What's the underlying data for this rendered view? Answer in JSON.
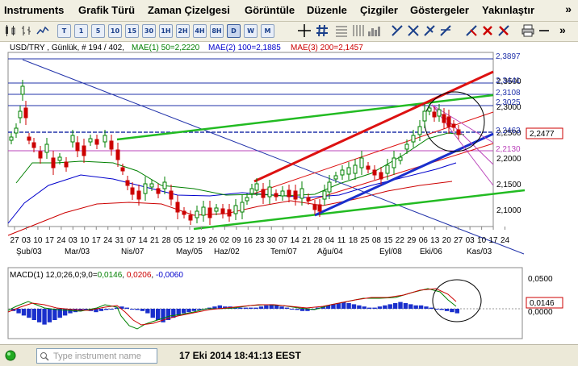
{
  "menu": [
    "Instruments",
    "Grafik Türü",
    "Zaman Çizelgesi",
    "Görüntüle",
    "Düzenle",
    "Çizgiler",
    "Göstergeler",
    "Yakınlaştır"
  ],
  "menu_more": "»",
  "toolbar": {
    "periods": [
      "T",
      "1",
      "5",
      "10",
      "15",
      "30",
      "1H",
      "2H",
      "4H",
      "8H",
      "D",
      "W",
      "M"
    ],
    "active_period": "D",
    "more": "»"
  },
  "chart": {
    "header": {
      "instrument": "USD/TRY , Günlük, # 194 / 402,",
      "ma1": "MAE(1) 50=2,2220",
      "ma2": "MAE(2) 100=2,1885",
      "ma3": "MAE(3) 200=2,1457",
      "ma1_color": "#008000",
      "ma2_color": "#0000cc",
      "ma3_color": "#cc0000"
    },
    "price_labels": [
      "2,3897",
      "2,3441",
      "2,3108",
      "2,3025",
      "2,2463",
      "2,2130"
    ],
    "axis_labels": [
      "2,3500",
      "2,3000",
      "2,2500",
      "2,2000",
      "2,1500",
      "2,1000"
    ],
    "current_price": "2,2477",
    "date_ticks": [
      "27",
      "03",
      "10",
      "17",
      "24",
      "03",
      "10",
      "17",
      "24",
      "31",
      "07",
      "14",
      "21",
      "28",
      "05",
      "12",
      "19",
      "26",
      "02",
      "09",
      "16",
      "23",
      "30",
      "07",
      "14",
      "21",
      "28",
      "04",
      "11",
      "18",
      "25",
      "08",
      "15",
      "22",
      "29",
      "06",
      "13",
      "20",
      "27",
      "03",
      "10",
      "17",
      "24"
    ],
    "month_labels": [
      "Şub/03",
      "Mar/03",
      "Nis/07",
      "May/05",
      "Haz/02",
      "Tem/07",
      "Ağu/04",
      "Eyl/08",
      "Eki/06",
      "Kas/03"
    ]
  },
  "macd": {
    "label": "MACD(1) 12,0;26,0;9,0=",
    "v1": "0,0146",
    "v2": "0,0206",
    "v3": "-0,0060",
    "axis_labels": [
      "0,0500",
      "0,0000"
    ],
    "current": "0,0146"
  },
  "status": {
    "search_placeholder": "Type instrument name",
    "timestamp": "17 Eki 2014 18:41:13 EEST"
  },
  "colors": {
    "up": "#008000",
    "down": "#cc0000",
    "blue": "#0000cc",
    "purple": "#cc00cc",
    "green_line": "#22bb22"
  }
}
